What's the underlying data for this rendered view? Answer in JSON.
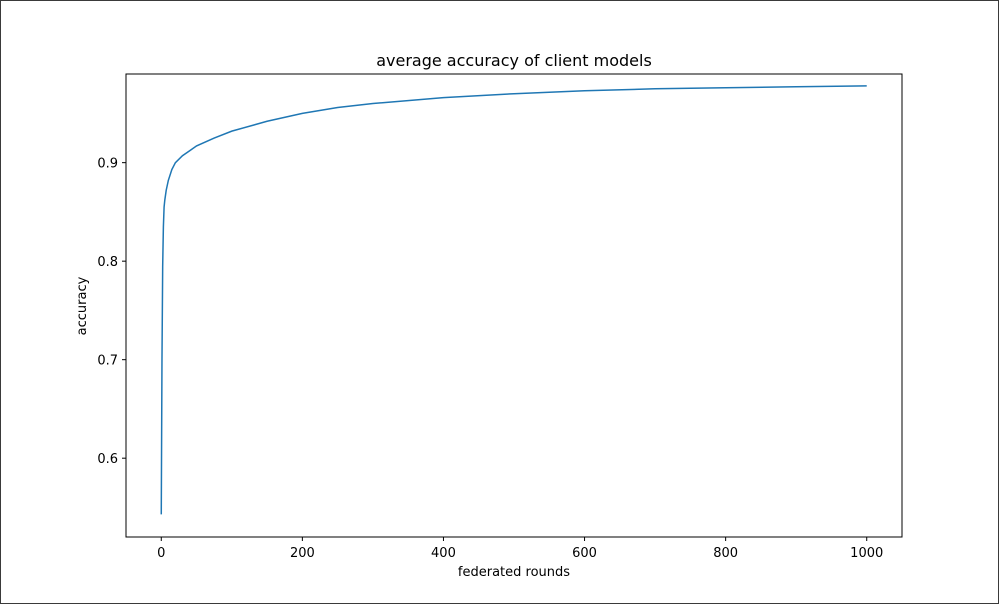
{
  "chart_data": {
    "type": "line",
    "title": "average accuracy of client models",
    "xlabel": "federated rounds",
    "ylabel": "accuracy",
    "xlim": [
      -50,
      1050
    ],
    "ylim": [
      0.52,
      0.99
    ],
    "xticks": [
      0,
      200,
      400,
      600,
      800,
      1000
    ],
    "xtick_labels": [
      "0",
      "200",
      "400",
      "600",
      "800",
      "1000"
    ],
    "yticks": [
      0.6,
      0.7,
      0.8,
      0.9
    ],
    "ytick_labels": [
      "0.6",
      "0.7",
      "0.8",
      "0.9"
    ],
    "grid": false,
    "line_color": "#1f77b4",
    "series": [
      {
        "x": [
          0,
          1,
          2,
          3,
          4,
          5,
          7,
          10,
          15,
          20,
          30,
          40,
          50,
          75,
          100,
          150,
          200,
          250,
          300,
          400,
          500,
          600,
          700,
          800,
          900,
          1000
        ],
        "values": [
          0.543,
          0.7,
          0.795,
          0.835,
          0.855,
          0.862,
          0.872,
          0.882,
          0.893,
          0.9,
          0.907,
          0.912,
          0.917,
          0.925,
          0.932,
          0.942,
          0.95,
          0.956,
          0.96,
          0.966,
          0.97,
          0.973,
          0.975,
          0.976,
          0.977,
          0.978
        ]
      }
    ]
  }
}
